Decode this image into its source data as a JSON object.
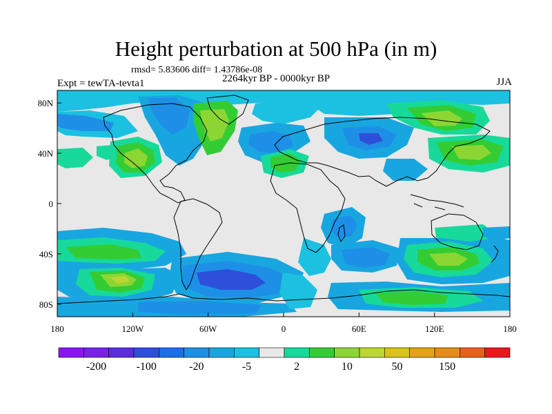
{
  "title": "Height perturbation at 500 hPa (in m)",
  "stats": "rmsd= 5.83606 diff= 1.43786e-08",
  "expt": "Expt = tewTA-tevta1",
  "period": "2264kyr BP - 0000kyr BP",
  "season": "JJA",
  "map": {
    "lon_range": [
      -180,
      180
    ],
    "lat_range": [
      -90,
      90
    ],
    "lon_ticks": [
      {
        "value": -180,
        "label": "180"
      },
      {
        "value": -120,
        "label": "120W"
      },
      {
        "value": -60,
        "label": "60W"
      },
      {
        "value": 0,
        "label": "0"
      },
      {
        "value": 60,
        "label": "60E"
      },
      {
        "value": 120,
        "label": "120E"
      },
      {
        "value": 180,
        "label": "180"
      }
    ],
    "lat_ticks": [
      {
        "value": 80,
        "label": "80N"
      },
      {
        "value": 40,
        "label": "40N"
      },
      {
        "value": 0,
        "label": "0"
      },
      {
        "value": -40,
        "label": "40S"
      },
      {
        "value": -80,
        "label": "80S"
      }
    ],
    "background_color": "#e8e8e8",
    "coastline_color": "#000000"
  },
  "colorbar": {
    "labels": [
      {
        "index": 1,
        "text": "-200"
      },
      {
        "index": 3,
        "text": "-100"
      },
      {
        "index": 5,
        "text": "-20"
      },
      {
        "index": 7,
        "text": "-5"
      },
      {
        "index": 9,
        "text": "2"
      },
      {
        "index": 11,
        "text": "10"
      },
      {
        "index": 13,
        "text": "50"
      },
      {
        "index": 15,
        "text": "150"
      }
    ],
    "colors": [
      "#8a17f2",
      "#7a22e6",
      "#5a2ed9",
      "#2e4fd9",
      "#1a6fe8",
      "#1e8fe6",
      "#18a6e0",
      "#1cc0e0",
      "#e8e8e8",
      "#17d99a",
      "#33cc33",
      "#8cd633",
      "#bcd633",
      "#d9c21a",
      "#e6a31a",
      "#e68a1a",
      "#e6621a",
      "#e61a1a"
    ]
  }
}
